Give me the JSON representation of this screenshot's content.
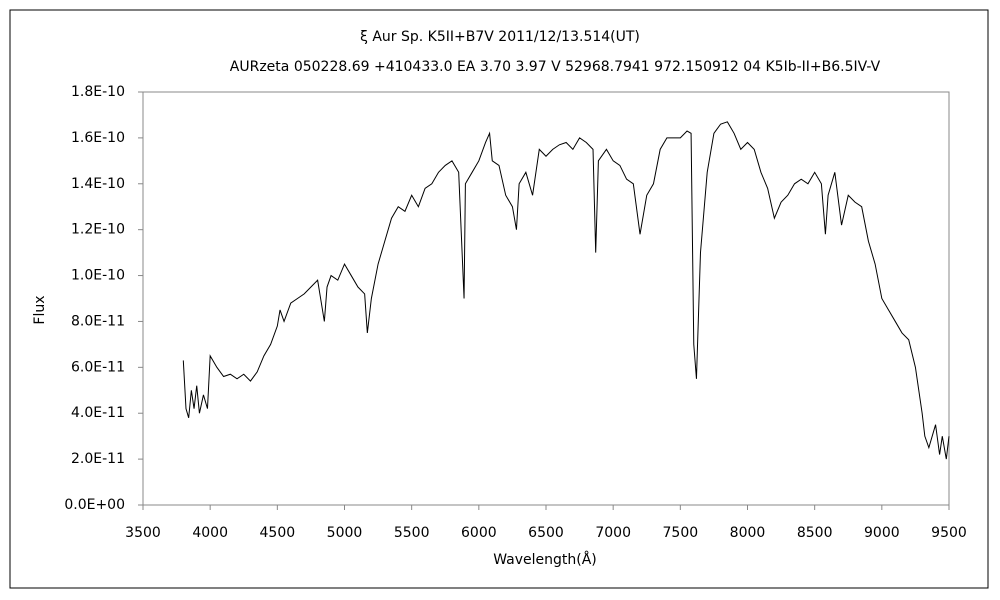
{
  "chart_data": {
    "type": "line",
    "title": "ξ  Aur    Sp. K5II+B7V    2011/12/13.514(UT)",
    "subtitle": "AURzeta 050228.69 +410433.0 EA 3.70 3.97 V 52968.7941 972.150912 04 K5Ib-II+B6.5IV-V",
    "x_label": "Wavelength(Å)",
    "y_label": "Flux",
    "xlim": [
      3500,
      9500
    ],
    "xticks": [
      3500,
      4000,
      4500,
      5000,
      5500,
      6000,
      6500,
      7000,
      7500,
      8000,
      8500,
      9000,
      9500
    ],
    "ylim": [
      0,
      1.8e-10
    ],
    "yticks": [
      {
        "value": 0,
        "label": "0.0E+00"
      },
      {
        "value": 2e-11,
        "label": "2.0E-11"
      },
      {
        "value": 4e-11,
        "label": "4.0E-11"
      },
      {
        "value": 6e-11,
        "label": "6.0E-11"
      },
      {
        "value": 8e-11,
        "label": "8.0E-11"
      },
      {
        "value": 1e-10,
        "label": "1.0E-10"
      },
      {
        "value": 1.2e-10,
        "label": "1.2E-10"
      },
      {
        "value": 1.4e-10,
        "label": "1.4E-10"
      },
      {
        "value": 1.6e-10,
        "label": "1.6E-10"
      },
      {
        "value": 1.8e-10,
        "label": "1.8E-10"
      }
    ],
    "grid": false,
    "color": "#000000",
    "x": [
      3800,
      3820,
      3840,
      3860,
      3880,
      3900,
      3920,
      3950,
      3980,
      4000,
      4050,
      4100,
      4150,
      4200,
      4250,
      4300,
      4350,
      4400,
      4450,
      4500,
      4520,
      4550,
      4600,
      4650,
      4700,
      4750,
      4800,
      4850,
      4870,
      4900,
      4950,
      5000,
      5050,
      5100,
      5150,
      5170,
      5200,
      5250,
      5300,
      5350,
      5400,
      5450,
      5500,
      5550,
      5600,
      5650,
      5700,
      5750,
      5800,
      5850,
      5890,
      5900,
      5950,
      6000,
      6050,
      6080,
      6100,
      6150,
      6200,
      6250,
      6280,
      6300,
      6350,
      6400,
      6450,
      6500,
      6550,
      6600,
      6650,
      6700,
      6750,
      6800,
      6850,
      6870,
      6890,
      6950,
      7000,
      7050,
      7100,
      7150,
      7200,
      7250,
      7300,
      7350,
      7400,
      7450,
      7500,
      7550,
      7580,
      7600,
      7620,
      7650,
      7700,
      7750,
      7800,
      7850,
      7900,
      7950,
      8000,
      8050,
      8100,
      8150,
      8200,
      8250,
      8300,
      8350,
      8400,
      8450,
      8500,
      8550,
      8580,
      8600,
      8650,
      8700,
      8750,
      8800,
      8850,
      8900,
      8950,
      9000,
      9050,
      9100,
      9150,
      9200,
      9250,
      9300,
      9320,
      9350,
      9400,
      9430,
      9450,
      9480,
      9500
    ],
    "values": [
      6.3e-11,
      4.2e-11,
      3.8e-11,
      5e-11,
      4.2e-11,
      5.2e-11,
      4e-11,
      4.8e-11,
      4.2e-11,
      6.5e-11,
      6e-11,
      5.6e-11,
      5.7e-11,
      5.5e-11,
      5.7e-11,
      5.4e-11,
      5.8e-11,
      6.5e-11,
      7e-11,
      7.8e-11,
      8.5e-11,
      8e-11,
      8.8e-11,
      9e-11,
      9.2e-11,
      9.5e-11,
      9.8e-11,
      8e-11,
      9.5e-11,
      1e-10,
      9.8e-11,
      1.05e-10,
      1e-10,
      9.5e-11,
      9.2e-11,
      7.5e-11,
      9e-11,
      1.05e-10,
      1.15e-10,
      1.25e-10,
      1.3e-10,
      1.28e-10,
      1.35e-10,
      1.3e-10,
      1.38e-10,
      1.4e-10,
      1.45e-10,
      1.48e-10,
      1.5e-10,
      1.45e-10,
      9e-11,
      1.4e-10,
      1.45e-10,
      1.5e-10,
      1.58e-10,
      1.62e-10,
      1.5e-10,
      1.48e-10,
      1.35e-10,
      1.3e-10,
      1.2e-10,
      1.4e-10,
      1.45e-10,
      1.35e-10,
      1.55e-10,
      1.52e-10,
      1.55e-10,
      1.57e-10,
      1.58e-10,
      1.55e-10,
      1.6e-10,
      1.58e-10,
      1.55e-10,
      1.1e-10,
      1.5e-10,
      1.55e-10,
      1.5e-10,
      1.48e-10,
      1.42e-10,
      1.4e-10,
      1.18e-10,
      1.35e-10,
      1.4e-10,
      1.55e-10,
      1.6e-10,
      1.6e-10,
      1.6e-10,
      1.63e-10,
      1.62e-10,
      7e-11,
      5.5e-11,
      1.1e-10,
      1.45e-10,
      1.62e-10,
      1.66e-10,
      1.67e-10,
      1.62e-10,
      1.55e-10,
      1.58e-10,
      1.55e-10,
      1.45e-10,
      1.38e-10,
      1.25e-10,
      1.32e-10,
      1.35e-10,
      1.4e-10,
      1.42e-10,
      1.4e-10,
      1.45e-10,
      1.4e-10,
      1.18e-10,
      1.35e-10,
      1.45e-10,
      1.22e-10,
      1.35e-10,
      1.32e-10,
      1.3e-10,
      1.15e-10,
      1.05e-10,
      9e-11,
      8.5e-11,
      8e-11,
      7.5e-11,
      7.2e-11,
      6e-11,
      4e-11,
      3e-11,
      2.5e-11,
      3.5e-11,
      2.2e-11,
      3e-11,
      2e-11,
      3e-11
    ]
  }
}
